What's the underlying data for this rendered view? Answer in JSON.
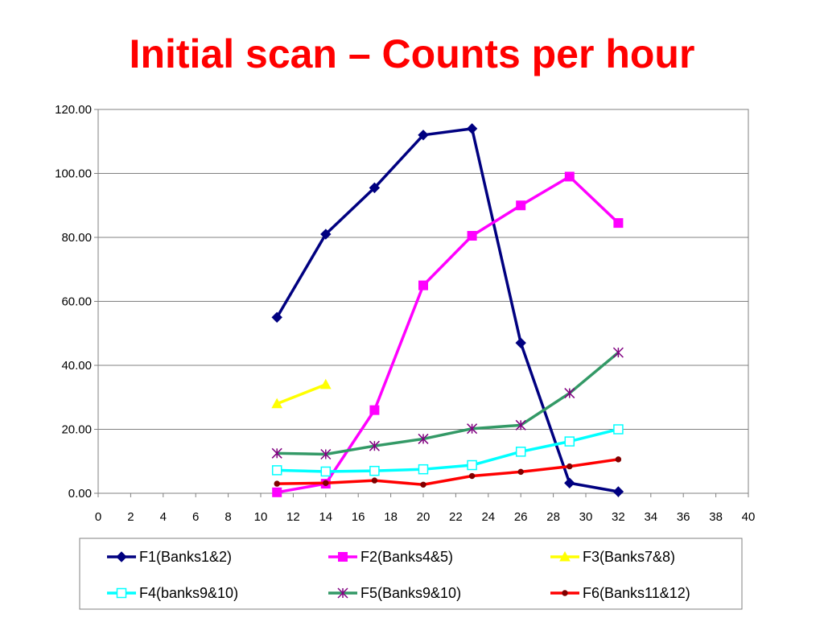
{
  "slide": {
    "title": "Initial scan – Counts per hour"
  },
  "chart_data": {
    "type": "line",
    "title": "",
    "xlabel": "",
    "ylabel": "",
    "xlim": [
      0,
      40
    ],
    "ylim": [
      0,
      120
    ],
    "x_ticks": [
      0,
      2,
      4,
      6,
      8,
      10,
      12,
      14,
      16,
      18,
      20,
      22,
      24,
      26,
      28,
      30,
      32,
      34,
      36,
      38,
      40
    ],
    "x_tick_labels": [
      "0",
      "2",
      "4",
      "6",
      "8",
      "10",
      "12",
      "14",
      "16",
      "18",
      "20",
      "22",
      "24",
      "26",
      "28",
      "30",
      "32",
      "34",
      "36",
      "38",
      "40"
    ],
    "y_ticks": [
      0,
      20,
      40,
      60,
      80,
      100,
      120
    ],
    "y_tick_labels": [
      "0.00",
      "20.00",
      "40.00",
      "60.00",
      "80.00",
      "100.00",
      "120.00"
    ],
    "grid": "horizontal",
    "legend_position": "bottom",
    "series": [
      {
        "name": "F1(Banks1&2)",
        "color": "#000080",
        "marker": "diamond",
        "x": [
          11,
          14,
          17,
          20,
          23,
          26,
          29,
          32
        ],
        "y": [
          55,
          81,
          95.5,
          112,
          114,
          47,
          3.2,
          0.5
        ]
      },
      {
        "name": "F2(Banks4&5)",
        "color": "#ff00ff",
        "marker": "square",
        "x": [
          11,
          14,
          17,
          20,
          23,
          26,
          29,
          32
        ],
        "y": [
          0.3,
          3,
          26,
          65,
          80.5,
          90,
          99,
          84.5
        ]
      },
      {
        "name": "F3(Banks7&8)",
        "color": "#ffff00",
        "marker": "triangle",
        "x": [
          11,
          14
        ],
        "y": [
          28,
          34
        ]
      },
      {
        "name": "F4(banks9&10)",
        "color": "#00ffff",
        "marker": "open-square",
        "x": [
          11,
          14,
          17,
          20,
          23,
          26,
          29,
          32
        ],
        "y": [
          7.2,
          6.8,
          7,
          7.5,
          8.8,
          13,
          16.2,
          20
        ]
      },
      {
        "name": "F5(Banks9&10)",
        "color": "#339966",
        "marker": "asterisk",
        "marker_color": "#800080",
        "x": [
          11,
          14,
          17,
          20,
          23,
          26,
          29,
          32
        ],
        "y": [
          12.5,
          12.2,
          14.8,
          17,
          20.2,
          21.3,
          31.3,
          44
        ]
      },
      {
        "name": "F6(Banks11&12)",
        "color": "#ff0000",
        "marker": "dot",
        "marker_color": "#800000",
        "x": [
          11,
          14,
          17,
          20,
          23,
          26,
          29,
          32
        ],
        "y": [
          3,
          3.2,
          4,
          2.7,
          5.4,
          6.7,
          8.4,
          10.6
        ]
      }
    ]
  }
}
